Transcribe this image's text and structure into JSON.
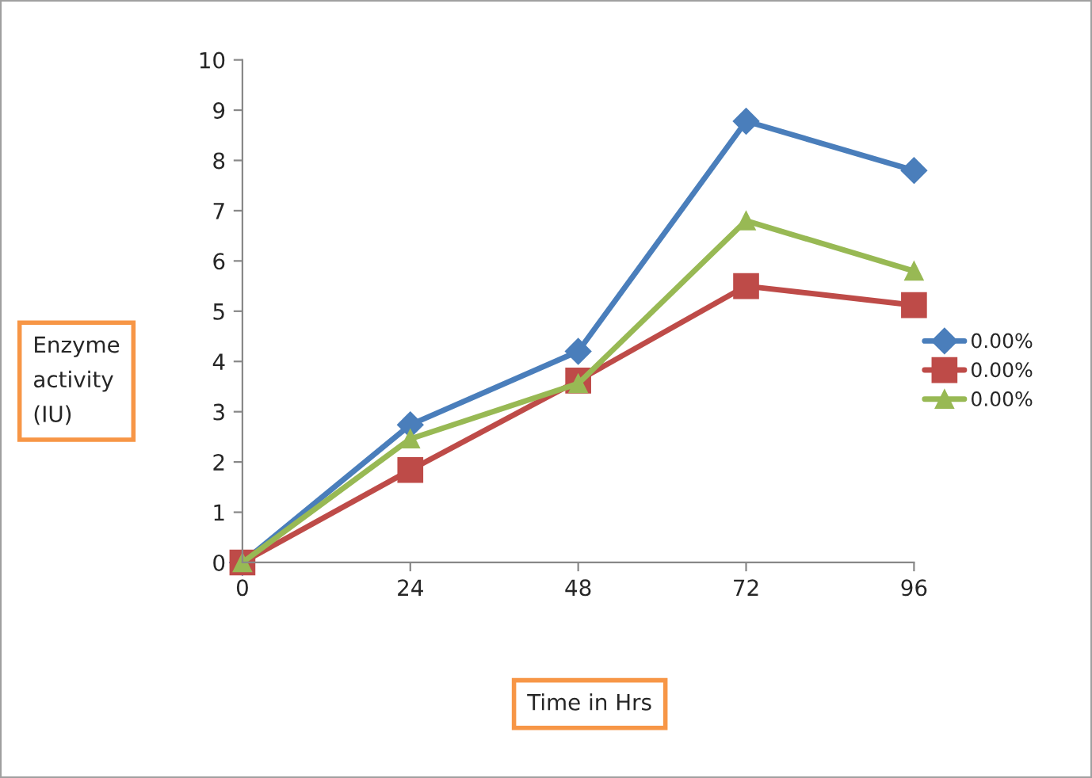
{
  "chart_data": {
    "type": "line",
    "xlabel": "Time in Hrs",
    "ylabel": "Enzyme\nactivity\n(IU)",
    "x": [
      0,
      24,
      48,
      72,
      96
    ],
    "series": [
      {
        "name": "0.00%",
        "color": "#4a7ebb",
        "marker": "diamond",
        "values": [
          0,
          2.74,
          4.2,
          8.78,
          7.8
        ]
      },
      {
        "name": "0.00%",
        "color": "#be4b48",
        "marker": "square",
        "values": [
          0,
          1.84,
          3.62,
          5.5,
          5.12
        ]
      },
      {
        "name": "0.00%",
        "color": "#98b954",
        "marker": "triangle",
        "values": [
          0,
          2.46,
          3.56,
          6.8,
          5.8
        ]
      }
    ],
    "xlim": [
      0,
      96
    ],
    "xticks": [
      0,
      24,
      48,
      72,
      96
    ],
    "ylim": [
      0,
      10
    ],
    "yticks": [
      0,
      1,
      2,
      3,
      4,
      5,
      6,
      7,
      8,
      9,
      10
    ],
    "grid": false,
    "legend": "right",
    "line_style": "solid"
  }
}
